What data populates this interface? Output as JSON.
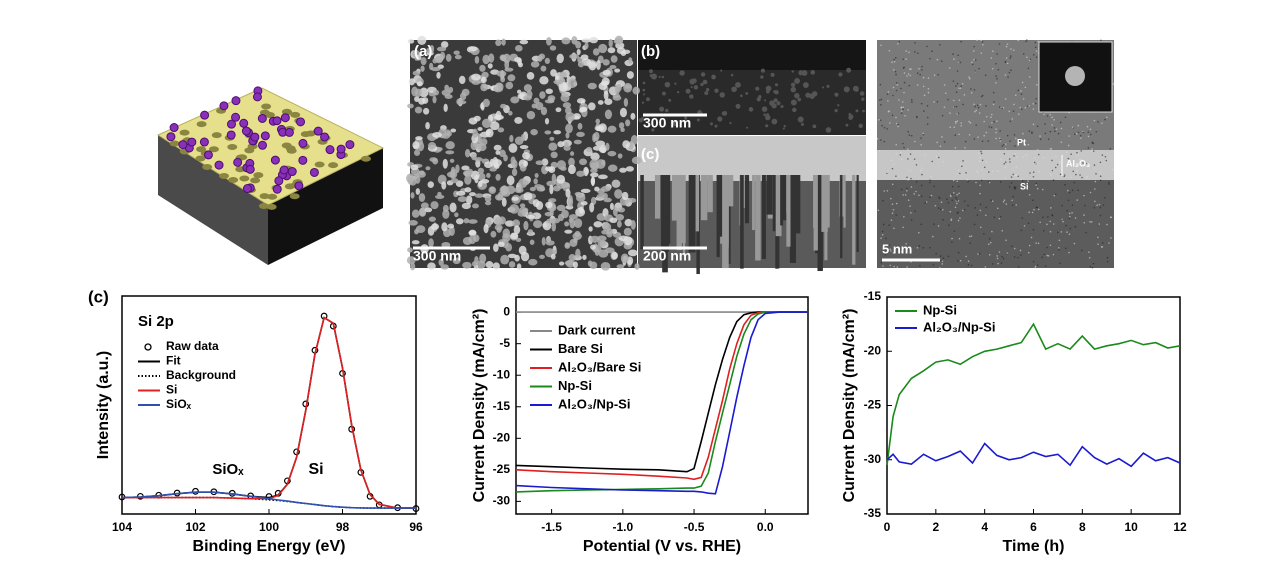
{
  "images": {
    "sem": [
      {
        "label": "(a)",
        "scale_bar": "300 nm"
      },
      {
        "label": "(b)",
        "scale_bar": "300 nm"
      },
      {
        "label": "(c)",
        "scale_bar": "200 nm"
      }
    ],
    "tem": {
      "scale_bar": "5 nm",
      "layers": [
        "Pt",
        "Al₂O₃",
        "Si"
      ]
    }
  },
  "chart_data": [
    {
      "type": "line",
      "panel_label": "(c)",
      "annotations": [
        "Si 2p",
        "Si",
        "SiOₓ"
      ],
      "xlabel": "Binding Energy (eV)",
      "ylabel": "Intensity (a.u.)",
      "xlim": [
        104,
        96
      ],
      "xticks": [
        104,
        102,
        100,
        98,
        96
      ],
      "ylim": [
        0,
        100
      ],
      "x": [
        104,
        103.5,
        103,
        102.5,
        102,
        101.5,
        101,
        100.5,
        100,
        99.75,
        99.5,
        99.25,
        99,
        98.75,
        98.5,
        98.25,
        98,
        97.75,
        97.5,
        97.25,
        97,
        96.5,
        96
      ],
      "series": [
        {
          "name": "Raw data",
          "color": "#000000",
          "marker": "circle",
          "values": [
            7.8,
            8.1,
            8.6,
            9.6,
            10.4,
            10.2,
            9.5,
            8.3,
            8.0,
            9.5,
            15.2,
            28.5,
            50.5,
            75.1,
            90.8,
            86.2,
            64.5,
            38.9,
            19.1,
            8.1,
            4.2,
            2.9,
            2.5
          ]
        },
        {
          "name": "Fit",
          "color": "#000000",
          "values": [
            7.5,
            7.8,
            8.4,
            9.3,
            10,
            10,
            9.2,
            8.1,
            7.5,
            8.7,
            13.7,
            26,
            47.6,
            73.2,
            90.1,
            87.5,
            67,
            40.7,
            20.2,
            8.9,
            4.4,
            2.7,
            2.7
          ]
        },
        {
          "name": "Background",
          "color": "#000000",
          "dash": "dotted",
          "values": [
            7.5,
            7.5,
            7.5,
            7.5,
            7.5,
            7.5,
            7.3,
            7,
            6.5,
            6.2,
            5.8,
            5.3,
            4.8,
            4.3,
            3.8,
            3.4,
            3.1,
            2.9,
            2.8,
            2.7,
            2.7,
            2.7,
            2.7
          ]
        },
        {
          "name": "Si",
          "color": "#e02020",
          "values": [
            7.5,
            7.5,
            7.5,
            7.5,
            7.5,
            7.5,
            7.3,
            7,
            7.0,
            8.5,
            13.6,
            26,
            47.6,
            73.2,
            90.1,
            87.5,
            67,
            40.7,
            20.2,
            8.9,
            4.4,
            2.7,
            2.7
          ]
        },
        {
          "name": "SiOₓ",
          "color": "#3050b0",
          "values": [
            7.5,
            7.8,
            8.4,
            9.3,
            10,
            10,
            9.2,
            8.1,
            7,
            6.4,
            5.9,
            5.3,
            4.8,
            4.3,
            3.8,
            3.4,
            3.1,
            2.9,
            2.8,
            2.7,
            2.7,
            2.7,
            2.7
          ]
        }
      ]
    },
    {
      "type": "line",
      "xlabel": "Potential (V vs. RHE)",
      "ylabel": "Current Density (mA/cm²)",
      "xlim": [
        -1.75,
        0.3
      ],
      "xticks": [
        -1.5,
        {
          "value": -1,
          "label": "-1.0"
        },
        -0.5,
        {
          "value": 0,
          "label": "0.0"
        }
      ],
      "ylim": [
        -32,
        2.4
      ],
      "yticks": [
        0,
        -5,
        -10,
        -15,
        -20,
        -25,
        -30
      ],
      "x": [
        -1.75,
        -1.5,
        -1.25,
        -1.0,
        -0.75,
        -0.55,
        -0.5,
        -0.45,
        -0.4,
        -0.35,
        -0.3,
        -0.25,
        -0.2,
        -0.15,
        -0.1,
        -0.05,
        0,
        0.1,
        0.2,
        0.3
      ],
      "series": [
        {
          "name": "Dark current",
          "color": "#888888",
          "values": [
            0,
            0,
            0,
            0,
            0,
            0,
            0,
            0,
            0,
            0,
            0,
            0,
            0,
            0,
            0,
            0,
            0,
            0,
            0,
            0
          ]
        },
        {
          "name": "Bare Si",
          "color": "#000000",
          "values": [
            -24.3,
            -24.5,
            -24.7,
            -24.9,
            -25.0,
            -25.3,
            -24.8,
            -20.5,
            -16,
            -11.5,
            -7.5,
            -4,
            -1.5,
            -0.4,
            -0.1,
            0,
            0,
            0,
            0,
            0
          ]
        },
        {
          "name": "Al₂O₃/Bare Si",
          "color": "#e02020",
          "values": [
            -25.0,
            -25.3,
            -25.5,
            -25.7,
            -26,
            -26.3,
            -26.5,
            -26.2,
            -23,
            -18.5,
            -14,
            -9,
            -5,
            -2,
            -0.5,
            -0.1,
            0,
            0,
            0,
            0
          ]
        },
        {
          "name": "Np-Si",
          "color": "#1a8a1a",
          "values": [
            -28.5,
            -28.3,
            -28.2,
            -28.1,
            -28.0,
            -27.9,
            -27.9,
            -27.6,
            -25.5,
            -20.5,
            -16,
            -11.5,
            -7,
            -3.5,
            -1.2,
            -0.3,
            0,
            0,
            0,
            0
          ]
        },
        {
          "name": "Al₂O₃/Np-Si",
          "color": "#1a1ad0",
          "values": [
            -27.5,
            -27.8,
            -28.0,
            -28.2,
            -28.3,
            -28.4,
            -28.4,
            -28.5,
            -28.7,
            -28.8,
            -24.5,
            -19,
            -13.5,
            -8.5,
            -4,
            -1.2,
            -0.2,
            0,
            0,
            0
          ]
        }
      ]
    },
    {
      "type": "line",
      "xlabel": "Time (h)",
      "ylabel": "Current Density (mA/cm²)",
      "xlim": [
        0,
        12
      ],
      "xticks": [
        0,
        2,
        4,
        6,
        8,
        10,
        12
      ],
      "ylim": [
        -35,
        -15
      ],
      "yticks": [
        -35,
        -30,
        -25,
        -20,
        -15
      ],
      "x": [
        0,
        0.25,
        0.5,
        1,
        1.5,
        2,
        2.5,
        3,
        3.5,
        4,
        4.5,
        5,
        5.5,
        6,
        6.5,
        7,
        7.5,
        8,
        8.5,
        9,
        9.5,
        10,
        10.5,
        11,
        11.5,
        12
      ],
      "series": [
        {
          "name": "Np-Si",
          "color": "#1a8a1a",
          "values": [
            -30.5,
            -26,
            -24,
            -22.5,
            -21.8,
            -21,
            -20.8,
            -21.2,
            -20.5,
            -20,
            -19.8,
            -19.5,
            -19.2,
            -17.5,
            -19.8,
            -19.3,
            -19.8,
            -18.6,
            -19.8,
            -19.5,
            -19.3,
            -19,
            -19.4,
            -19.2,
            -19.7,
            -19.5
          ]
        },
        {
          "name": "Al₂O₃/Np-Si",
          "color": "#1a1ad0",
          "values": [
            -30,
            -29.5,
            -30.2,
            -30.4,
            -29.5,
            -30.1,
            -29.7,
            -29.2,
            -30.3,
            -28.5,
            -29.6,
            -30,
            -29.8,
            -29.3,
            -29.7,
            -29.5,
            -30.5,
            -28.8,
            -29.8,
            -30.4,
            -29.9,
            -30.6,
            -29.4,
            -30.1,
            -29.8,
            -30.3
          ]
        }
      ]
    }
  ]
}
